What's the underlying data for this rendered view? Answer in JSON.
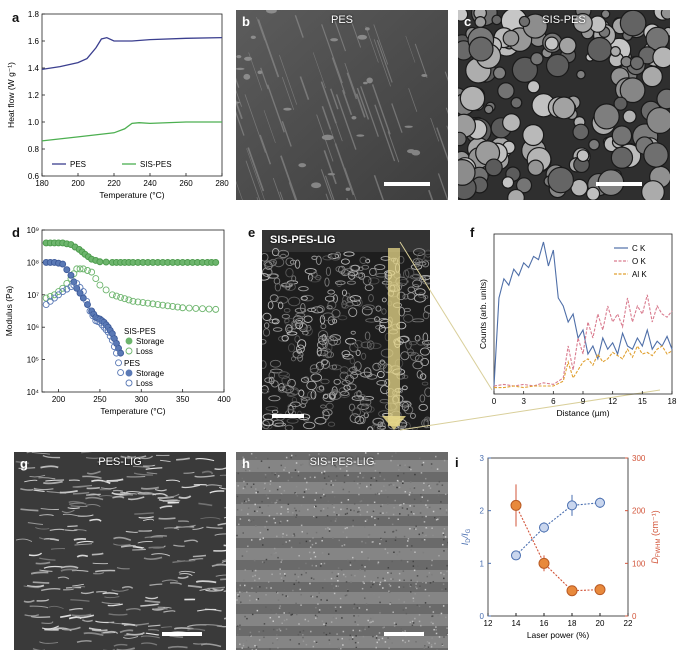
{
  "panels": {
    "a": {
      "label": "a"
    },
    "b": {
      "label": "b",
      "title": "PES"
    },
    "c": {
      "label": "c",
      "title": "SIS-PES"
    },
    "d": {
      "label": "d"
    },
    "e": {
      "label": "e",
      "title": "SIS-PES-LIG"
    },
    "f": {
      "label": "f"
    },
    "g": {
      "label": "g",
      "title": "PES-LIG"
    },
    "h": {
      "label": "h",
      "title": "SIS-PES-LIG"
    },
    "i": {
      "label": "i"
    }
  },
  "chart_data": [
    {
      "panel": "a",
      "type": "line",
      "xlabel": "Temperature (°C)",
      "ylabel": "Heat flow (W g⁻¹)",
      "xlim": [
        180,
        280
      ],
      "ylim": [
        0.6,
        1.8
      ],
      "xticks": [
        180,
        200,
        220,
        240,
        260,
        280
      ],
      "yticks": [
        0.6,
        0.8,
        1.0,
        1.2,
        1.4,
        1.6,
        1.8
      ],
      "legend_position": "bottom",
      "colors": {
        "PES": "#3b3f8f",
        "SIS-PES": "#4caf50"
      },
      "series": [
        {
          "name": "PES",
          "x": [
            180,
            190,
            200,
            205,
            210,
            213,
            216,
            220,
            230,
            240,
            260,
            280
          ],
          "y": [
            1.39,
            1.41,
            1.44,
            1.47,
            1.55,
            1.615,
            1.625,
            1.6,
            1.6,
            1.61,
            1.62,
            1.625
          ]
        },
        {
          "name": "SIS-PES",
          "x": [
            180,
            200,
            220,
            226,
            230,
            234,
            240,
            260,
            280
          ],
          "y": [
            0.86,
            0.89,
            0.92,
            0.95,
            0.99,
            0.995,
            0.99,
            1.0,
            1.0
          ]
        }
      ]
    },
    {
      "panel": "d",
      "type": "scatter",
      "xlabel": "Temperature (°C)",
      "ylabel": "Modulus (Pa)",
      "xlim": [
        180,
        400
      ],
      "ylim_log10": [
        4,
        9
      ],
      "xticks": [
        200,
        250,
        300,
        350,
        400
      ],
      "yticks": [
        "10⁴",
        "10⁵",
        "10⁶",
        "10⁷",
        "10⁸",
        "10⁹"
      ],
      "legend": [
        {
          "group": "SIS-PES",
          "items": [
            {
              "name": "Storage",
              "fill": "#6db56d"
            },
            {
              "name": "Loss",
              "fill": "none",
              "stroke": "#6db56d"
            }
          ]
        },
        {
          "group": "PES",
          "items": [
            {
              "name": "Storage",
              "fill": "#5a79b5"
            },
            {
              "name": "Loss",
              "fill": "none",
              "stroke": "#5a79b5"
            }
          ]
        }
      ],
      "series": [
        {
          "name": "SIS-PES Storage",
          "x": [
            185,
            195,
            205,
            215,
            225,
            232,
            240,
            250,
            265,
            290,
            320,
            350,
            380,
            390
          ],
          "y_log10": [
            8.6,
            8.6,
            8.6,
            8.55,
            8.4,
            8.25,
            8.1,
            8.02,
            8.0,
            8.0,
            8.0,
            8.0,
            8.0,
            8.0
          ]
        },
        {
          "name": "SIS-PES Loss",
          "x": [
            185,
            195,
            205,
            215,
            222,
            230,
            240,
            250,
            265,
            290,
            320,
            350,
            390
          ],
          "y_log10": [
            6.9,
            7.0,
            7.2,
            7.5,
            7.8,
            7.8,
            7.7,
            7.3,
            7.0,
            6.8,
            6.7,
            6.6,
            6.55
          ]
        },
        {
          "name": "PES Storage",
          "x": [
            185,
            195,
            205,
            215,
            222,
            230,
            240,
            245,
            250,
            255,
            260,
            265,
            270,
            275
          ],
          "y_log10": [
            8.0,
            8.0,
            7.95,
            7.6,
            7.2,
            6.9,
            6.5,
            6.3,
            6.25,
            6.15,
            6.0,
            5.8,
            5.5,
            5.2
          ]
        },
        {
          "name": "PES Loss",
          "x": [
            185,
            195,
            205,
            215,
            222,
            230,
            238,
            245,
            250,
            255,
            260,
            265,
            270,
            275
          ],
          "y_log10": [
            6.7,
            6.9,
            7.1,
            7.25,
            7.35,
            7.1,
            6.5,
            6.2,
            6.15,
            6.0,
            5.85,
            5.6,
            5.2,
            4.6
          ]
        }
      ]
    },
    {
      "panel": "f",
      "type": "line",
      "xlabel": "Distance (µm)",
      "ylabel": "Counts (arb. units)",
      "xlim": [
        0,
        18
      ],
      "ylim": [
        0,
        1
      ],
      "xticks": [
        0,
        3,
        6,
        9,
        12,
        15,
        18
      ],
      "legend_position": "top-right",
      "colors": {
        "C K": "#4f6fa8",
        "O K": "#d97c8f",
        "Al K": "#e0a030"
      },
      "series": [
        {
          "name": "C K",
          "x": [
            0,
            0.5,
            1,
            1.5,
            2,
            2.5,
            3,
            3.5,
            4,
            4.5,
            5,
            5.5,
            6,
            6.5,
            7,
            7.5,
            8,
            8.5,
            9,
            9.5,
            10,
            10.5,
            11,
            11.5,
            12,
            12.5,
            13,
            13.5,
            14,
            14.5,
            15,
            15.5,
            16,
            16.5,
            17,
            17.5,
            18
          ],
          "y": [
            0.05,
            0.6,
            0.72,
            0.68,
            0.78,
            0.74,
            0.82,
            0.79,
            0.86,
            0.84,
            0.95,
            0.8,
            0.9,
            0.6,
            0.55,
            0.45,
            0.5,
            0.35,
            0.4,
            0.25,
            0.3,
            0.22,
            0.35,
            0.28,
            0.32,
            0.25,
            0.38,
            0.3,
            0.28,
            0.35,
            0.3,
            0.4,
            0.28,
            0.33,
            0.3,
            0.36,
            0.28
          ]
        },
        {
          "name": "O K",
          "x": [
            0,
            1,
            2,
            3,
            4,
            5,
            6,
            7,
            7.5,
            8,
            8.5,
            9,
            9.5,
            10,
            10.5,
            11,
            11.5,
            12,
            12.5,
            13,
            13.5,
            14,
            14.5,
            15,
            15.5,
            16,
            16.5,
            17,
            17.5,
            18
          ],
          "y": [
            0.05,
            0.06,
            0.05,
            0.06,
            0.05,
            0.07,
            0.06,
            0.1,
            0.3,
            0.15,
            0.35,
            0.25,
            0.45,
            0.35,
            0.5,
            0.4,
            0.55,
            0.45,
            0.5,
            0.42,
            0.6,
            0.45,
            0.55,
            0.5,
            0.62,
            0.45,
            0.55,
            0.5,
            0.48,
            0.52
          ]
        },
        {
          "name": "Al K",
          "x": [
            0,
            1,
            2,
            3,
            4,
            5,
            6,
            7,
            7.5,
            8,
            8.5,
            9,
            9.5,
            10,
            10.5,
            11,
            11.5,
            12,
            12.5,
            13,
            13.5,
            14,
            14.5,
            15,
            15.5,
            16,
            16.5,
            17,
            17.5,
            18
          ],
          "y": [
            0.04,
            0.04,
            0.05,
            0.04,
            0.05,
            0.05,
            0.05,
            0.08,
            0.2,
            0.1,
            0.15,
            0.2,
            0.22,
            0.18,
            0.25,
            0.2,
            0.22,
            0.26,
            0.24,
            0.22,
            0.28,
            0.23,
            0.3,
            0.25,
            0.26,
            0.24,
            0.28,
            0.3,
            0.25,
            0.27
          ]
        }
      ]
    },
    {
      "panel": "i",
      "type": "scatter",
      "xlabel": "Laser power (%)",
      "ylabel_left": "I_D/I_G",
      "ylabel_left_main": "I",
      "ylabel_left_sub1": "D",
      "ylabel_left_sep": "/I",
      "ylabel_left_sub2": "G",
      "ylabel_right": "D_FWHM (cm⁻¹)",
      "ylabel_right_main": "D",
      "ylabel_right_sub": "FWHM",
      "ylabel_right_unit": "(cm⁻¹)",
      "xlim": [
        12,
        22
      ],
      "ylim_left": [
        0,
        3
      ],
      "ylim_right": [
        0,
        300
      ],
      "xticks": [
        12,
        14,
        16,
        18,
        20,
        22
      ],
      "yticks_left": [
        0,
        1,
        2,
        3
      ],
      "yticks_right": [
        0,
        100,
        200,
        300
      ],
      "colors": {
        "left": "#4a6fb0",
        "right": "#d2553a"
      },
      "series": [
        {
          "name": "I_D/I_G",
          "axis": "left",
          "x": [
            14,
            16,
            18,
            20
          ],
          "y": [
            1.15,
            1.68,
            2.1,
            2.15
          ],
          "err": [
            0.05,
            0.1,
            0.2,
            0.1
          ]
        },
        {
          "name": "D_FWHM",
          "axis": "right",
          "x": [
            14,
            16,
            18,
            20
          ],
          "y": [
            210,
            100,
            48,
            50
          ],
          "err": [
            40,
            15,
            5,
            5
          ]
        }
      ]
    }
  ]
}
